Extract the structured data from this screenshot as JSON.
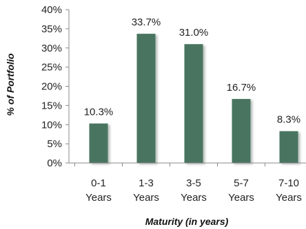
{
  "chart_data": {
    "type": "bar",
    "categories": [
      [
        "0-1",
        "Years"
      ],
      [
        "1-3",
        "Years"
      ],
      [
        "3-5",
        "Years"
      ],
      [
        "5-7",
        "Years"
      ],
      [
        "7-10",
        "Years"
      ]
    ],
    "values": [
      10.3,
      33.7,
      31.0,
      16.7,
      8.3
    ],
    "data_labels": [
      "10.3%",
      "33.7%",
      "31.0%",
      "16.7%",
      "8.3%"
    ],
    "title": "",
    "xlabel": "Maturity (in years)",
    "ylabel": "% of Portfolio",
    "ylim": [
      0,
      40
    ],
    "yticks": [
      0,
      5,
      10,
      15,
      20,
      25,
      30,
      35,
      40
    ],
    "ytick_labels": [
      "0%",
      "5%",
      "10%",
      "15%",
      "20%",
      "25%",
      "30%",
      "35%",
      "40%"
    ],
    "grid": false,
    "legend": "none",
    "colors": {
      "bar": "#4a7561",
      "bar_shadow": "#b8c2bc",
      "axis": "#888888",
      "text": "#222222"
    }
  }
}
